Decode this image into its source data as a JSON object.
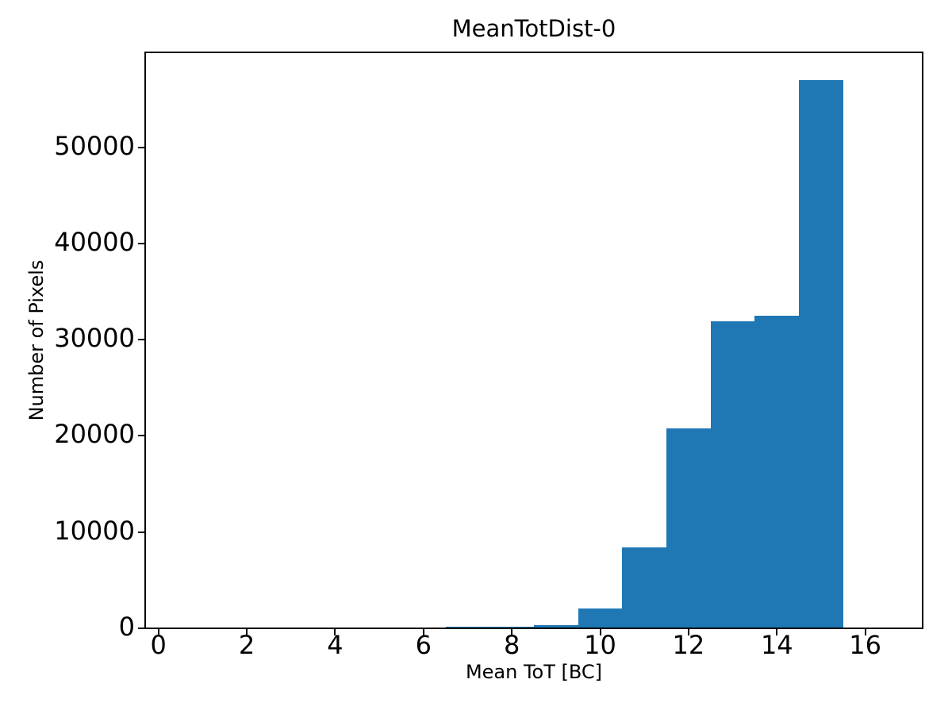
{
  "chart_data": {
    "type": "bar",
    "subtype": "histogram",
    "title": "MeanTotDist-0",
    "xlabel": "Mean ToT [BC]",
    "ylabel": "Number of Pixels",
    "bin_edges": [
      0.5,
      1.5,
      2.5,
      3.5,
      4.5,
      5.5,
      6.5,
      7.5,
      8.5,
      9.5,
      10.5,
      11.5,
      12.5,
      13.5,
      14.5,
      15.5,
      16.5
    ],
    "bin_centers": [
      1,
      2,
      3,
      4,
      5,
      6,
      7,
      8,
      9,
      10,
      11,
      12,
      13,
      14,
      15,
      16
    ],
    "values": [
      0,
      0,
      0,
      0,
      0,
      0,
      160,
      160,
      330,
      2100,
      8400,
      20800,
      31900,
      32500,
      57000,
      0
    ],
    "xlim": [
      -0.3,
      17.3
    ],
    "ylim": [
      0,
      59850
    ],
    "xticks": [
      0,
      2,
      4,
      6,
      8,
      10,
      12,
      14,
      16
    ],
    "yticks": [
      0,
      10000,
      20000,
      30000,
      40000,
      50000
    ],
    "bar_color": "#1f77b4",
    "axis_color": "#000000",
    "grid": false,
    "legend": null
  }
}
